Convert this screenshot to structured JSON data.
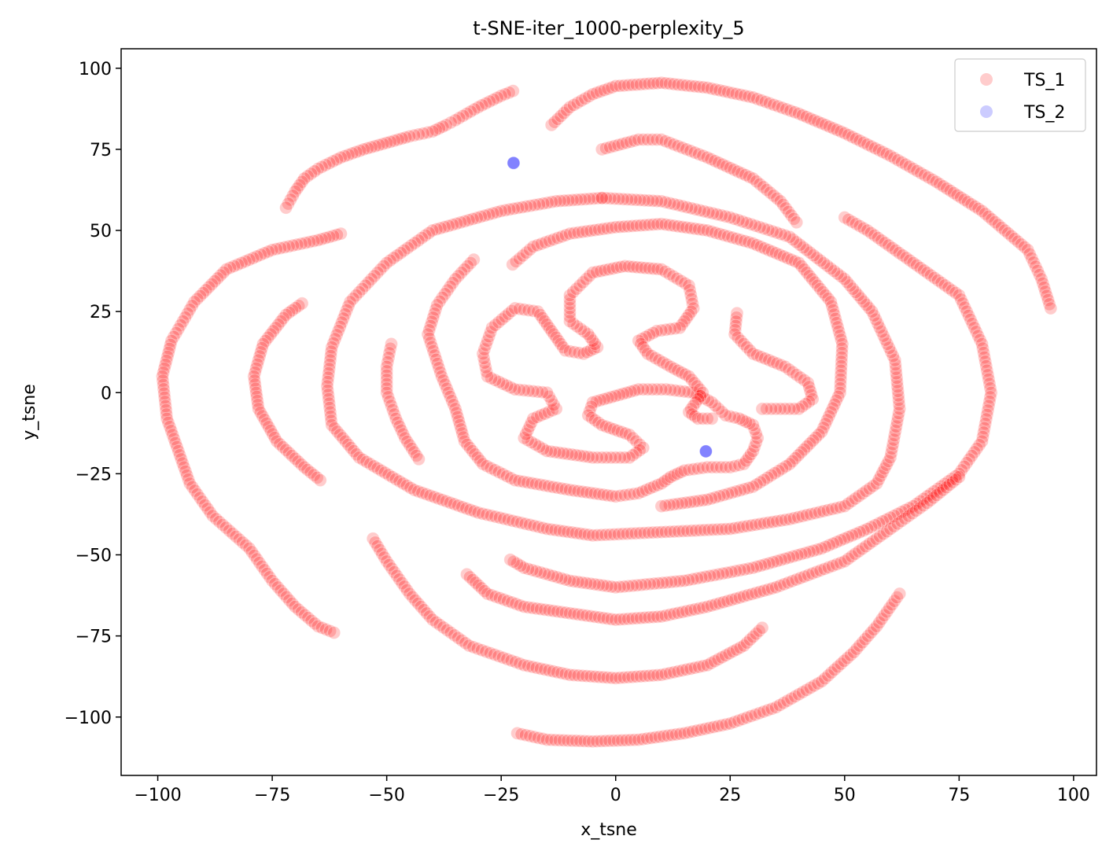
{
  "chart_data": {
    "type": "scatter",
    "title": "t-SNE-iter_1000-perplexity_5",
    "xlabel": "x_tsne",
    "ylabel": "y_tsne",
    "xlim": [
      -108,
      105
    ],
    "ylim": [
      -118,
      106
    ],
    "xticks": [
      -100,
      -75,
      -50,
      -25,
      0,
      25,
      50,
      75,
      100
    ],
    "yticks": [
      -100,
      -75,
      -50,
      -25,
      0,
      25,
      50,
      75,
      100
    ],
    "grid": false,
    "legend_position": "top-right",
    "series": [
      {
        "name": "TS_1",
        "color": "#ff0000",
        "alpha": 0.2,
        "curves": [
          [
            [
              -22.4,
              93
            ],
            [
              -25,
              91.5
            ],
            [
              -30,
              88
            ],
            [
              -35,
              84
            ],
            [
              -37,
              82.5
            ],
            [
              -40,
              80.5
            ],
            [
              -45,
              79
            ],
            [
              -50,
              77
            ],
            [
              -55,
              75
            ],
            [
              -60,
              72.5
            ],
            [
              -65,
              69
            ],
            [
              -68,
              66
            ],
            [
              -70,
              62
            ],
            [
              -72,
              57
            ]
          ],
          [
            [
              -14,
              82.5
            ],
            [
              -10,
              88
            ],
            [
              -5,
              92
            ],
            [
              0,
              94.5
            ],
            [
              10,
              95.5
            ],
            [
              20,
              94
            ],
            [
              30,
              91
            ],
            [
              40,
              86
            ],
            [
              50,
              80
            ],
            [
              60,
              73
            ],
            [
              70,
              65
            ],
            [
              80,
              56
            ],
            [
              90,
              44
            ],
            [
              93,
              35
            ],
            [
              95,
              26
            ]
          ],
          [
            [
              -3,
              75
            ],
            [
              5,
              78
            ],
            [
              10,
              78
            ],
            [
              20,
              72.5
            ],
            [
              30,
              66
            ],
            [
              36,
              59
            ],
            [
              39.5,
              52.5
            ]
          ],
          [
            [
              -60,
              49
            ],
            [
              -65,
              47
            ],
            [
              -75,
              44
            ],
            [
              -85,
              38
            ],
            [
              -92,
              28
            ],
            [
              -97,
              16
            ],
            [
              -99,
              5
            ],
            [
              -98,
              -8
            ],
            [
              -93,
              -28
            ],
            [
              -88,
              -38
            ],
            [
              -80,
              -48
            ],
            [
              -75,
              -58
            ],
            [
              -70,
              -66
            ],
            [
              -65,
              -72
            ],
            [
              -61.5,
              -74
            ]
          ],
          [
            [
              -68.5,
              27.5
            ],
            [
              -72,
              24
            ],
            [
              -77,
              15
            ],
            [
              -79,
              5
            ],
            [
              -78,
              -5
            ],
            [
              -74,
              -15
            ],
            [
              -68,
              -23
            ],
            [
              -64.5,
              -27
            ]
          ],
          [
            [
              -3,
              60
            ],
            [
              -13,
              59
            ],
            [
              -25,
              56
            ],
            [
              -40,
              50
            ],
            [
              -50,
              40
            ],
            [
              -58,
              28
            ],
            [
              -62,
              14
            ],
            [
              -63,
              2
            ],
            [
              -62,
              -10
            ],
            [
              -56,
              -20
            ],
            [
              -44,
              -30
            ],
            [
              -30,
              -37
            ],
            [
              -15,
              -42
            ],
            [
              -5,
              -44
            ],
            [
              10,
              -43
            ],
            [
              25,
              -42
            ],
            [
              38,
              -39
            ],
            [
              50,
              -35
            ],
            [
              57,
              -28
            ],
            [
              60,
              -20
            ],
            [
              62,
              -5
            ],
            [
              61,
              10
            ],
            [
              56,
              25
            ],
            [
              50,
              35
            ],
            [
              38,
              48
            ],
            [
              25,
              54
            ],
            [
              10,
              59
            ],
            [
              -3,
              60
            ]
          ],
          [
            [
              -22.5,
              39.5
            ],
            [
              -18,
              45
            ],
            [
              -10,
              49
            ],
            [
              0,
              51
            ],
            [
              10,
              52
            ],
            [
              20,
              50
            ],
            [
              30,
              46
            ],
            [
              40,
              40
            ],
            [
              47,
              28
            ],
            [
              49.5,
              15
            ],
            [
              49,
              0
            ],
            [
              45,
              -12
            ],
            [
              38,
              -22
            ],
            [
              30,
              -29
            ],
            [
              20,
              -33
            ],
            [
              10,
              -35
            ]
          ],
          [
            [
              -31,
              41
            ],
            [
              -35,
              35
            ],
            [
              -39,
              27
            ],
            [
              -41,
              18
            ],
            [
              -38,
              5
            ],
            [
              -35,
              -5
            ],
            [
              -33,
              -15
            ],
            [
              -29,
              -22
            ],
            [
              -22,
              -27
            ],
            [
              -10,
              -30
            ],
            [
              0,
              -32
            ],
            [
              5,
              -31
            ],
            [
              10,
              -28
            ],
            [
              12,
              -26
            ],
            [
              15,
              -24
            ],
            [
              20,
              -23
            ],
            [
              25,
              -23
            ],
            [
              28,
              -22
            ],
            [
              30,
              -18
            ],
            [
              31,
              -14
            ],
            [
              30,
              -10
            ],
            [
              27,
              -8
            ],
            [
              24,
              -7
            ],
            [
              21,
              -3
            ],
            [
              17,
              0
            ],
            [
              11,
              1
            ],
            [
              5,
              1
            ],
            [
              0,
              -1
            ],
            [
              -5,
              -3
            ],
            [
              -6,
              -7
            ],
            [
              -3,
              -10
            ],
            [
              3,
              -13
            ],
            [
              6,
              -17
            ],
            [
              3,
              -20
            ],
            [
              -5,
              -20
            ],
            [
              -15,
              -18
            ],
            [
              -20,
              -14
            ],
            [
              -18,
              -8
            ],
            [
              -13,
              -5
            ],
            [
              -15,
              0
            ],
            [
              -22,
              1
            ],
            [
              -28,
              5
            ],
            [
              -29,
              12
            ],
            [
              -27,
              20
            ],
            [
              -22,
              26
            ],
            [
              -17,
              25
            ],
            [
              -14,
              19
            ],
            [
              -11,
              13
            ],
            [
              -7,
              12
            ],
            [
              -4,
              14
            ],
            [
              -6,
              18
            ],
            [
              -10,
              22
            ],
            [
              -10,
              30
            ],
            [
              -5,
              37
            ],
            [
              2,
              39
            ],
            [
              10,
              38
            ],
            [
              16,
              33
            ],
            [
              17,
              26
            ],
            [
              14,
              20
            ],
            [
              9,
              19
            ],
            [
              5,
              16
            ],
            [
              7,
              12
            ],
            [
              12,
              8
            ],
            [
              16,
              5
            ],
            [
              19,
              0
            ],
            [
              16,
              -6
            ],
            [
              18,
              -8
            ],
            [
              21,
              -8
            ]
          ],
          [
            [
              26.5,
              24.5
            ],
            [
              26,
              18
            ],
            [
              30,
              12
            ],
            [
              37,
              8
            ],
            [
              42,
              3
            ],
            [
              43,
              -2
            ],
            [
              40,
              -5
            ],
            [
              32,
              -5
            ]
          ],
          [
            [
              -49,
              15
            ],
            [
              -50,
              8
            ],
            [
              -50,
              0
            ],
            [
              -48,
              -8
            ],
            [
              -46,
              -14
            ],
            [
              -43,
              -20.5
            ]
          ],
          [
            [
              50,
              54
            ],
            [
              55,
              50
            ],
            [
              65,
              40
            ],
            [
              75,
              30
            ],
            [
              80,
              15
            ],
            [
              82,
              0
            ],
            [
              80,
              -15
            ],
            [
              75,
              -25
            ],
            [
              65,
              -35
            ],
            [
              55,
              -42
            ],
            [
              45,
              -48
            ],
            [
              30,
              -54
            ],
            [
              15,
              -58
            ],
            [
              0,
              -60
            ],
            [
              -10,
              -58
            ],
            [
              -20,
              -54
            ],
            [
              -23,
              -51.5
            ]
          ],
          [
            [
              -32.5,
              -56
            ],
            [
              -28,
              -62
            ],
            [
              -20,
              -66
            ],
            [
              -10,
              -68
            ],
            [
              0,
              -70
            ],
            [
              10,
              -69
            ],
            [
              20,
              -66
            ],
            [
              35,
              -60
            ],
            [
              50,
              -52
            ],
            [
              60,
              -42
            ],
            [
              68,
              -34
            ],
            [
              75,
              -26
            ]
          ],
          [
            [
              -53,
              -45
            ],
            [
              -50,
              -52
            ],
            [
              -45,
              -62
            ],
            [
              -40,
              -70
            ],
            [
              -32,
              -78
            ],
            [
              -20,
              -84
            ],
            [
              -10,
              -87
            ],
            [
              0,
              -88
            ],
            [
              10,
              -87
            ],
            [
              20,
              -84
            ],
            [
              28,
              -78
            ],
            [
              32,
              -72.5
            ]
          ],
          [
            [
              -21.5,
              -105
            ],
            [
              -15,
              -107
            ],
            [
              -5,
              -107.5
            ],
            [
              5,
              -107
            ],
            [
              15,
              -105
            ],
            [
              25,
              -102
            ],
            [
              35,
              -97
            ],
            [
              45,
              -89
            ],
            [
              52,
              -80
            ],
            [
              57,
              -72
            ],
            [
              62,
              -62
            ]
          ]
        ]
      },
      {
        "name": "TS_2",
        "color": "#0000ff",
        "alpha": 0.2,
        "points": [
          [
            -22.3,
            70.8
          ],
          [
            19.7,
            -18.1
          ]
        ]
      }
    ]
  }
}
